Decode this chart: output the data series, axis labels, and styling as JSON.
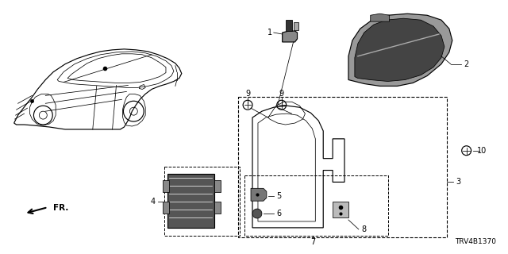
{
  "background_color": "#ffffff",
  "part_number": "TRV4B1370",
  "fig_width": 6.4,
  "fig_height": 3.2,
  "dpi": 100,
  "car_color": "#000000",
  "line_color": "#000000",
  "part_fill": "#888888",
  "part_fill_dark": "#333333",
  "part_fill_light": "#cccccc",
  "label_fontsize": 7,
  "pn_fontsize": 6.5
}
